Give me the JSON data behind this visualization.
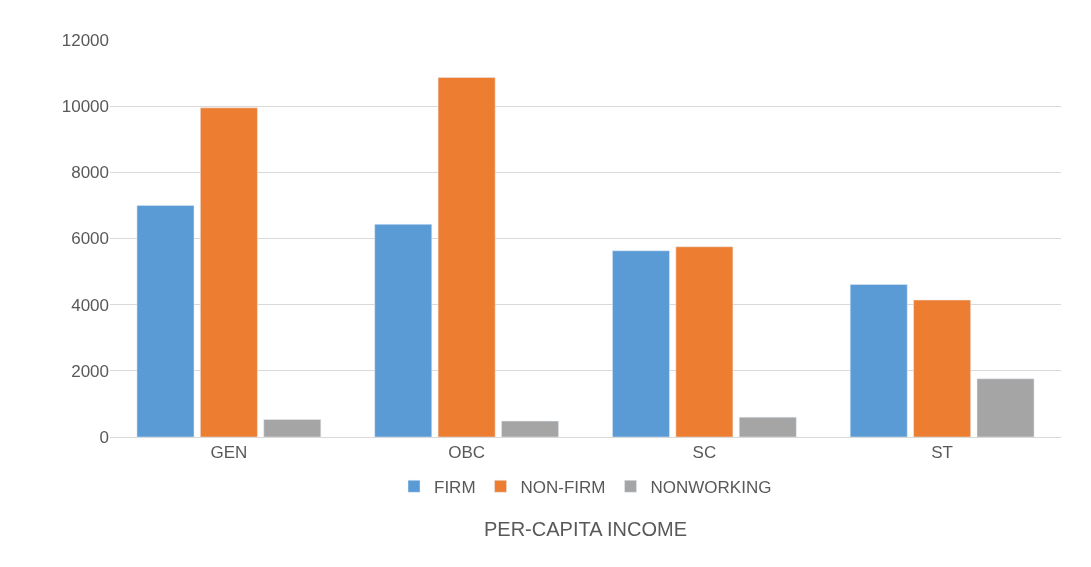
{
  "chart_data": {
    "type": "bar",
    "categories": [
      "GEN",
      "OBC",
      "SC",
      "ST"
    ],
    "series": [
      {
        "name": "FIRM",
        "color": "#5b9bd5",
        "values": [
          7000,
          6430,
          5630,
          4610
        ]
      },
      {
        "name": "NON-FIRM",
        "color": "#ed7d31",
        "values": [
          9950,
          10870,
          5750,
          4140
        ]
      },
      {
        "name": "NONWORKING",
        "color": "#a5a5a5",
        "values": [
          530,
          480,
          600,
          1760
        ]
      }
    ],
    "xlabel": "PER-CAPITA INCOME",
    "ylim": [
      0,
      12000
    ],
    "yticks": [
      0,
      2000,
      4000,
      6000,
      8000,
      10000,
      12000
    ],
    "grid": "y",
    "legend": "bottom"
  }
}
